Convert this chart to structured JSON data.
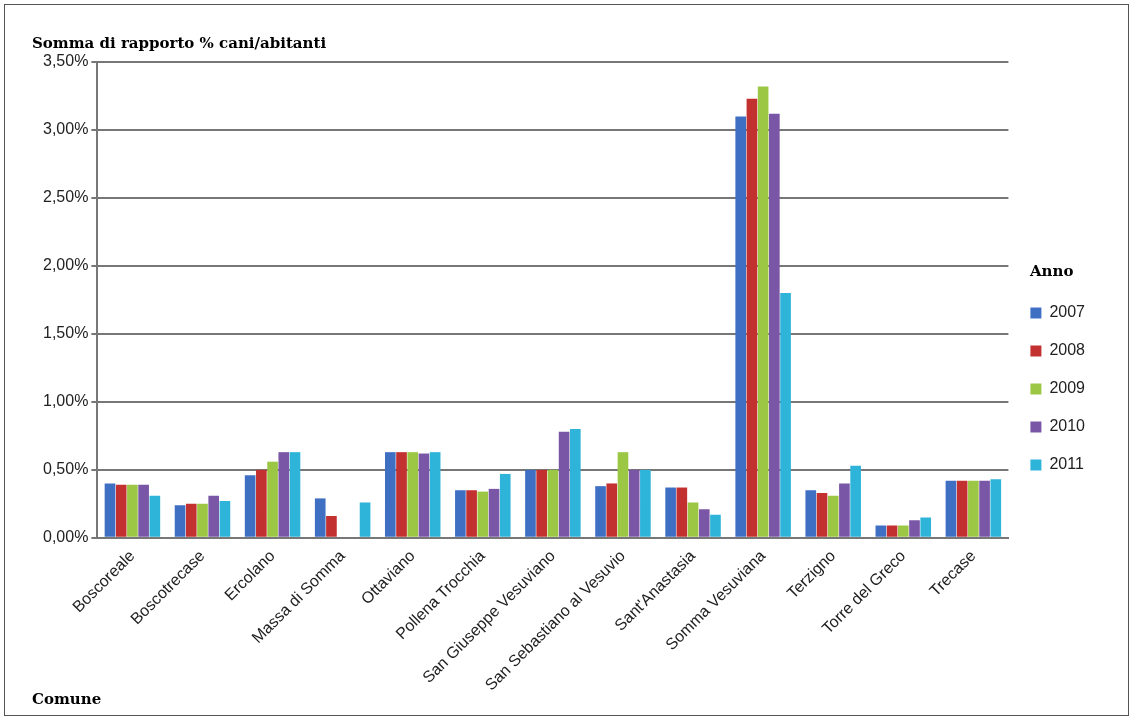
{
  "chart_data": {
    "type": "bar",
    "ylabel": "Somma di rapporto % cani/abitanti",
    "xlabel": "Comune",
    "legend_title": "Anno",
    "categories": [
      "Boscoreale",
      "Boscotrecase",
      "Ercolano",
      "Massa di Somma",
      "Ottaviano",
      "Pollena Trocchia",
      "San Giuseppe Vesuviano",
      "San Sebastiano al Vesuvio",
      "Sant'Anastasia",
      "Somma Vesuviana",
      "Terzigno",
      "Torre del Greco",
      "Trecase"
    ],
    "series": [
      {
        "name": "2007",
        "color": "#3f6fc3",
        "values": [
          0.4,
          0.24,
          0.46,
          0.29,
          0.63,
          0.35,
          0.5,
          0.38,
          0.37,
          3.1,
          0.35,
          0.09,
          0.42
        ]
      },
      {
        "name": "2008",
        "color": "#c2302f",
        "values": [
          0.39,
          0.25,
          0.5,
          0.16,
          0.63,
          0.35,
          0.5,
          0.4,
          0.37,
          3.23,
          0.33,
          0.09,
          0.42
        ]
      },
      {
        "name": "2009",
        "color": "#9cc744",
        "values": [
          0.39,
          0.25,
          0.56,
          null,
          0.63,
          0.34,
          0.5,
          0.63,
          0.26,
          3.32,
          0.31,
          0.09,
          0.42
        ]
      },
      {
        "name": "2010",
        "color": "#7a56a6",
        "values": [
          0.39,
          0.31,
          0.63,
          null,
          0.62,
          0.36,
          0.78,
          0.5,
          0.21,
          3.12,
          0.4,
          0.13,
          0.42
        ]
      },
      {
        "name": "2011",
        "color": "#2eb3d9",
        "values": [
          0.31,
          0.27,
          0.63,
          0.26,
          0.63,
          0.47,
          0.8,
          0.5,
          0.17,
          1.8,
          0.53,
          0.15,
          0.43
        ]
      }
    ],
    "ylim": [
      0,
      3.5
    ],
    "yticks": [
      {
        "value": 0,
        "label": "0,00%"
      },
      {
        "value": 0.5,
        "label": "0,50%"
      },
      {
        "value": 1,
        "label": "1,00%"
      },
      {
        "value": 1.5,
        "label": "1,50%"
      },
      {
        "value": 2,
        "label": "2,00%"
      },
      {
        "value": 2.5,
        "label": "2,50%"
      },
      {
        "value": 3,
        "label": "3,00%"
      },
      {
        "value": 3.5,
        "label": "3,50%"
      }
    ],
    "grid": "y",
    "legend": "right"
  }
}
